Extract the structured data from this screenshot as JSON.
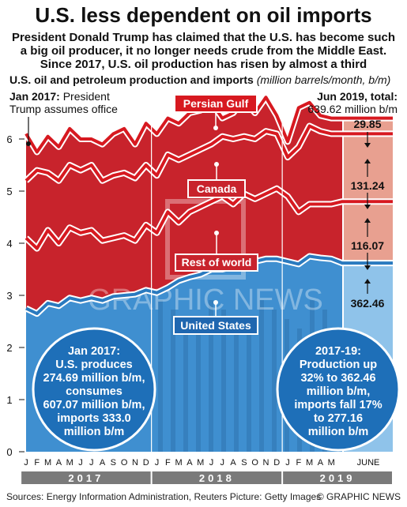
{
  "title": "U.S. less dependent on oil imports",
  "subtitle": [
    "President Donald Trump has claimed that the U.S. has become such",
    "a big oil producer, it no longer needs crude from the Middle East.",
    "Since 2017, U.S. oil production has risen by almost a third"
  ],
  "chart_heading": "U.S. oil and petroleum production and imports",
  "chart_unit": "(million barrels/month, b/m)",
  "annotation_start": {
    "bold": "Jan 2017:",
    "text1": " President",
    "text2": "Trump assumes office"
  },
  "annotation_end": {
    "bold": "Jun 2019, total:",
    "text": "639.62 million b/m"
  },
  "labels": {
    "gulf": "Persian Gulf",
    "canada": "Canada",
    "rest": "Rest of world",
    "us": "United States"
  },
  "june_values": {
    "gulf": "29.85",
    "canada": "131.24",
    "rest": "116.07",
    "us": "362.46"
  },
  "june_label": "JUNE",
  "bubble_left": [
    "Jan 2017:",
    "U.S. produces",
    "274.69 million b/m,",
    "consumes",
    "607.07 million b/m,",
    "imports 333.0",
    "million b/m"
  ],
  "bubble_right": [
    "2017-19:",
    "Production up",
    "32% to 362.46",
    "million b/m,",
    "imports fall 17%",
    "to 277.16",
    "million b/m"
  ],
  "watermark": "GRAPHIC NEWS",
  "source": "Sources: Energy Information Administration, Reuters     Picture: Getty Images",
  "credit": "© GRAPHIC NEWS",
  "colors": {
    "us": "#2a7abf",
    "us_fill": "#3f8fd0",
    "red_fill": "#c8232c",
    "gulf_line": "#d71920",
    "june_red": "#e8a090",
    "june_blue": "#8fc3ea",
    "year_bar": "#7a7a7a"
  },
  "chart_data": {
    "type": "area",
    "x": [
      "2017-01",
      "2017-02",
      "2017-03",
      "2017-04",
      "2017-05",
      "2017-06",
      "2017-07",
      "2017-08",
      "2017-09",
      "2017-10",
      "2017-11",
      "2017-12",
      "2018-01",
      "2018-02",
      "2018-03",
      "2018-04",
      "2018-05",
      "2018-06",
      "2018-07",
      "2018-08",
      "2018-09",
      "2018-10",
      "2018-11",
      "2018-12",
      "2019-01",
      "2019-02",
      "2019-03",
      "2019-04",
      "2019-05",
      "2019-06"
    ],
    "month_ticks": [
      "J",
      "F",
      "M",
      "A",
      "M",
      "J",
      "J",
      "A",
      "S",
      "O",
      "N",
      "D",
      "J",
      "F",
      "M",
      "A",
      "M",
      "J",
      "J",
      "A",
      "S",
      "O",
      "N",
      "D",
      "J",
      "F",
      "M",
      "A",
      "M"
    ],
    "years": [
      "2017",
      "2018",
      "2019"
    ],
    "ylim": [
      0,
      7
    ],
    "yticks": [
      0,
      1,
      2,
      3,
      4,
      5,
      6
    ],
    "ylabel": "",
    "stacking": "cumulative",
    "series": [
      {
        "name": "United States",
        "values": [
          2.75,
          2.65,
          2.85,
          2.8,
          2.95,
          2.9,
          2.95,
          2.9,
          2.98,
          3.0,
          3.02,
          3.1,
          3.05,
          3.15,
          3.28,
          3.35,
          3.4,
          3.5,
          3.5,
          3.55,
          3.6,
          3.65,
          3.7,
          3.7,
          3.65,
          3.6,
          3.75,
          3.72,
          3.7,
          3.62
        ]
      },
      {
        "name": "Rest of world",
        "values": [
          4.1,
          3.9,
          4.25,
          4.0,
          4.3,
          4.2,
          4.25,
          4.05,
          4.1,
          4.15,
          4.05,
          4.35,
          4.2,
          4.6,
          4.4,
          4.6,
          4.7,
          4.8,
          4.9,
          4.75,
          4.95,
          4.85,
          4.95,
          5.05,
          4.9,
          4.6,
          4.75,
          4.75,
          4.75,
          4.8
        ]
      },
      {
        "name": "Canada",
        "values": [
          5.2,
          5.4,
          5.35,
          5.2,
          5.5,
          5.4,
          5.5,
          5.2,
          5.3,
          5.35,
          5.25,
          5.5,
          5.3,
          5.7,
          5.6,
          5.7,
          5.8,
          5.9,
          6.05,
          6.0,
          6.05,
          6.0,
          6.15,
          6.1,
          5.65,
          5.85,
          6.25,
          6.15,
          6.1,
          6.1
        ]
      },
      {
        "name": "Persian Gulf",
        "values": [
          6.1,
          5.75,
          6.05,
          5.85,
          6.2,
          6.0,
          6.0,
          5.9,
          6.1,
          6.2,
          5.9,
          6.3,
          6.1,
          6.4,
          6.3,
          6.5,
          6.55,
          6.7,
          6.4,
          6.5,
          6.75,
          6.5,
          6.8,
          6.45,
          5.95,
          6.6,
          6.7,
          6.45,
          6.4,
          6.4
        ]
      }
    ],
    "june_2019": {
      "United States": 362.46,
      "Rest of world": 116.07,
      "Canada": 131.24,
      "Persian Gulf": 29.85,
      "total": 639.62
    }
  }
}
